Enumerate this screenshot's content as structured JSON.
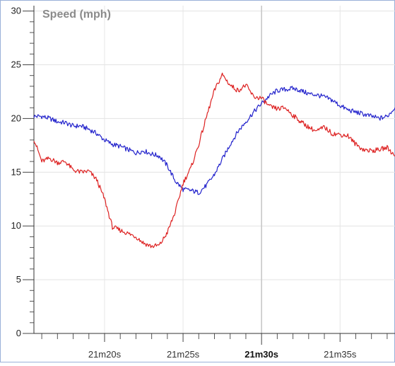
{
  "chart_data": {
    "type": "line",
    "title": "Speed (mph)",
    "xlabel": "",
    "ylabel": "",
    "xlim": [
      1275.5,
      1298.5
    ],
    "ylim": [
      0,
      30.5
    ],
    "y_ticks": [
      0,
      5,
      10,
      15,
      20,
      25,
      30
    ],
    "y_tick_labels": [
      "0",
      "5",
      "10",
      "15",
      "20",
      "25",
      "30"
    ],
    "x_ticks": [
      {
        "t": 1280,
        "label": "21m20s",
        "major": false
      },
      {
        "t": 1285,
        "label": "21m25s",
        "major": false
      },
      {
        "t": 1290,
        "label": "21m30s",
        "major": true
      },
      {
        "t": 1295,
        "label": "21m35s",
        "major": false
      }
    ],
    "grid": true,
    "series": [
      {
        "color": "#2323cc",
        "x": [
          1275.5,
          1276.0,
          1276.5,
          1277.0,
          1277.5,
          1278.0,
          1278.5,
          1279.0,
          1279.5,
          1280.0,
          1280.5,
          1281.0,
          1281.5,
          1282.0,
          1282.5,
          1283.0,
          1283.5,
          1284.0,
          1284.5,
          1285.0,
          1285.5,
          1286.0,
          1286.5,
          1287.0,
          1287.5,
          1288.0,
          1288.5,
          1289.0,
          1289.5,
          1290.0,
          1290.5,
          1291.0,
          1291.5,
          1292.0,
          1292.5,
          1293.0,
          1293.5,
          1294.0,
          1294.5,
          1295.0,
          1295.5,
          1296.0,
          1296.5,
          1297.0,
          1297.5,
          1298.0,
          1298.5
        ],
        "values": [
          20.2,
          20.2,
          20.0,
          19.7,
          19.6,
          19.3,
          19.3,
          19.0,
          18.6,
          18.0,
          17.6,
          17.4,
          17.1,
          16.8,
          17.0,
          16.7,
          16.5,
          15.6,
          14.2,
          13.4,
          13.3,
          13.1,
          13.8,
          14.8,
          16.2,
          17.6,
          18.8,
          19.7,
          20.6,
          21.4,
          22.1,
          22.6,
          22.7,
          22.8,
          22.6,
          22.3,
          22.2,
          22.0,
          21.7,
          21.2,
          20.8,
          20.6,
          20.4,
          20.2,
          20.0,
          20.2,
          21.0
        ]
      },
      {
        "color": "#dd2222",
        "x": [
          1275.5,
          1276.0,
          1276.5,
          1277.0,
          1277.5,
          1278.0,
          1278.5,
          1279.0,
          1279.5,
          1280.0,
          1280.5,
          1281.0,
          1281.5,
          1282.0,
          1282.5,
          1283.0,
          1283.5,
          1284.0,
          1284.5,
          1285.0,
          1285.5,
          1286.0,
          1286.5,
          1287.0,
          1287.5,
          1288.0,
          1288.5,
          1289.0,
          1289.5,
          1290.0,
          1290.5,
          1291.0,
          1291.5,
          1292.0,
          1292.5,
          1293.0,
          1293.5,
          1294.0,
          1294.5,
          1295.0,
          1295.5,
          1296.0,
          1296.5,
          1297.0,
          1297.5,
          1298.0,
          1298.5
        ],
        "values": [
          18.1,
          16.0,
          16.3,
          15.9,
          16.0,
          15.2,
          15.0,
          15.1,
          14.3,
          12.5,
          9.9,
          9.6,
          9.3,
          9.0,
          8.4,
          8.1,
          8.2,
          9.4,
          11.3,
          14.0,
          15.4,
          17.6,
          20.2,
          22.6,
          24.1,
          23.1,
          22.6,
          23.1,
          22.0,
          21.9,
          21.1,
          20.9,
          21.0,
          20.3,
          19.7,
          19.2,
          18.8,
          19.2,
          18.6,
          18.5,
          18.4,
          17.6,
          17.1,
          17.0,
          17.1,
          17.3,
          16.5
        ]
      }
    ]
  }
}
